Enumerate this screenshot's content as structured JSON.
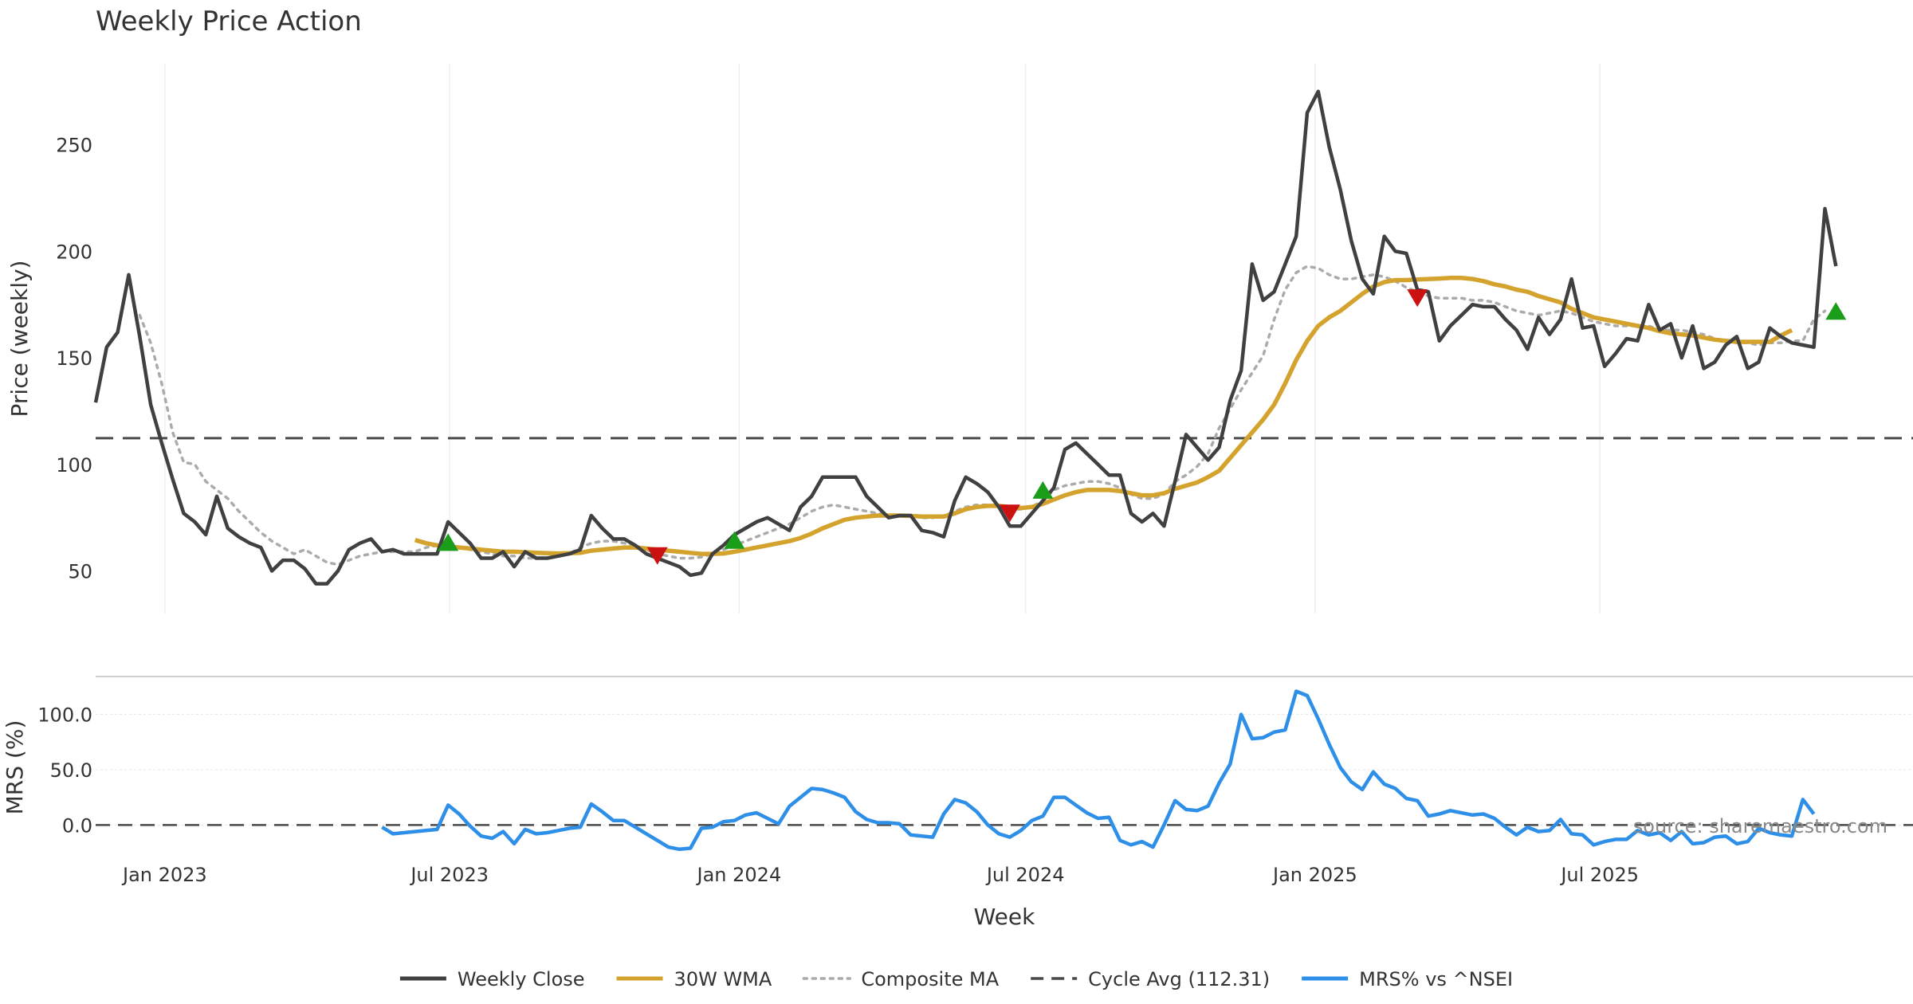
{
  "chart_data": {
    "type": "line",
    "title": "Weekly Price Action",
    "xlabel": "Week",
    "source": "source: sharemaestro.com",
    "dates": [
      "2022-11-18",
      "2022-11-25",
      "2022-12-02",
      "2022-12-09",
      "2022-12-16",
      "2022-12-23",
      "2022-12-30",
      "2023-01-06",
      "2023-01-13",
      "2023-01-20",
      "2023-01-27",
      "2023-02-03",
      "2023-02-10",
      "2023-02-17",
      "2023-02-24",
      "2023-03-03",
      "2023-03-10",
      "2023-03-17",
      "2023-03-24",
      "2023-03-31",
      "2023-04-07",
      "2023-04-14",
      "2023-04-21",
      "2023-04-28",
      "2023-05-05",
      "2023-05-12",
      "2023-05-19",
      "2023-05-26",
      "2023-06-02",
      "2023-06-09",
      "2023-06-16",
      "2023-06-23",
      "2023-06-30",
      "2023-07-07",
      "2023-07-14",
      "2023-07-21",
      "2023-07-28",
      "2023-08-04",
      "2023-08-11",
      "2023-08-18",
      "2023-08-25",
      "2023-09-01",
      "2023-09-08",
      "2023-09-15",
      "2023-09-22",
      "2023-09-29",
      "2023-10-06",
      "2023-10-13",
      "2023-10-20",
      "2023-10-27",
      "2023-11-03",
      "2023-11-10",
      "2023-11-17",
      "2023-11-24",
      "2023-12-01",
      "2023-12-08",
      "2023-12-15",
      "2023-12-22",
      "2023-12-29",
      "2024-01-05",
      "2024-01-12",
      "2024-01-19",
      "2024-01-26",
      "2024-02-02",
      "2024-02-09",
      "2024-02-16",
      "2024-02-23",
      "2024-03-01",
      "2024-03-08",
      "2024-03-15",
      "2024-03-22",
      "2024-03-29",
      "2024-04-05",
      "2024-04-12",
      "2024-04-19",
      "2024-04-26",
      "2024-05-03",
      "2024-05-10",
      "2024-05-17",
      "2024-05-24",
      "2024-05-31",
      "2024-06-07",
      "2024-06-14",
      "2024-06-21",
      "2024-06-28",
      "2024-07-05",
      "2024-07-12",
      "2024-07-19",
      "2024-07-26",
      "2024-08-02",
      "2024-08-09",
      "2024-08-16",
      "2024-08-23",
      "2024-08-30",
      "2024-09-06",
      "2024-09-13",
      "2024-09-20",
      "2024-09-27",
      "2024-10-04",
      "2024-10-11",
      "2024-10-18",
      "2024-10-25",
      "2024-11-01",
      "2024-11-08",
      "2024-11-15",
      "2024-11-22",
      "2024-11-29",
      "2024-12-06",
      "2024-12-13",
      "2024-12-20",
      "2024-12-27",
      "2025-01-03",
      "2025-01-10",
      "2025-01-17",
      "2025-01-24",
      "2025-01-31",
      "2025-02-07",
      "2025-02-14",
      "2025-02-21",
      "2025-02-28",
      "2025-03-07",
      "2025-03-14",
      "2025-03-21",
      "2025-03-28",
      "2025-04-04",
      "2025-04-11",
      "2025-04-18",
      "2025-04-25",
      "2025-05-02",
      "2025-05-09",
      "2025-05-16",
      "2025-05-23",
      "2025-05-30",
      "2025-06-06",
      "2025-06-13",
      "2025-06-20",
      "2025-06-27",
      "2025-07-04",
      "2025-07-11",
      "2025-07-18",
      "2025-07-25",
      "2025-08-01",
      "2025-08-08",
      "2025-08-15",
      "2025-08-22",
      "2025-08-29",
      "2025-09-05",
      "2025-09-12",
      "2025-09-19",
      "2025-09-26",
      "2025-10-03",
      "2025-10-10",
      "2025-10-17",
      "2025-10-24",
      "2025-10-31",
      "2025-11-07",
      "2025-11-14",
      "2025-11-21",
      "2025-11-28"
    ],
    "price_panel": {
      "ylabel": "Price (weekly)",
      "yticks": [
        50,
        100,
        150,
        200,
        250
      ],
      "ylim": [
        30,
        288
      ],
      "series": [
        {
          "name": "Weekly Close",
          "color": "#404040",
          "style": "solid",
          "values": [
            129,
            155,
            162,
            189,
            160,
            128,
            110,
            93,
            77,
            73,
            67,
            85,
            70,
            66,
            63,
            61,
            50,
            55,
            55,
            51,
            44,
            44,
            50,
            60,
            63,
            65,
            59,
            60,
            58,
            58,
            58,
            58,
            73,
            68,
            63,
            56,
            56,
            59,
            52,
            59,
            56,
            56,
            57,
            58,
            60,
            76,
            70,
            65,
            65,
            62,
            58,
            56,
            54,
            52,
            48,
            49,
            58,
            62,
            67,
            70,
            73,
            75,
            72,
            69,
            80,
            85,
            94,
            94,
            94,
            94,
            85,
            80,
            75,
            76,
            76,
            69,
            68,
            66,
            83,
            94,
            91,
            87,
            80,
            71,
            71,
            77,
            83,
            89,
            107,
            110,
            105,
            100,
            95,
            95,
            77,
            73,
            77,
            71,
            92,
            114,
            108,
            102,
            108,
            130,
            144,
            194,
            177,
            181,
            194,
            207,
            265,
            275,
            249,
            229,
            205,
            187,
            180,
            207,
            200,
            199,
            182,
            181,
            158,
            165,
            170,
            175,
            174,
            174,
            168,
            163,
            154,
            169,
            161,
            168,
            187,
            164,
            165,
            146,
            152,
            159,
            158,
            175,
            163,
            166,
            150,
            165,
            145,
            148,
            156,
            160,
            145,
            148,
            164,
            160,
            157,
            156,
            155,
            220,
            193
          ]
        },
        {
          "name": "30W WMA",
          "color": "#D4A32E",
          "style": "solid",
          "values": [
            null,
            null,
            null,
            null,
            null,
            null,
            null,
            null,
            null,
            null,
            null,
            null,
            null,
            null,
            null,
            null,
            null,
            null,
            null,
            null,
            null,
            null,
            null,
            null,
            null,
            null,
            null,
            null,
            null,
            64.5,
            63,
            62,
            61.5,
            61,
            60.5,
            60,
            59.5,
            59,
            59,
            58.8,
            58.5,
            58.3,
            58.2,
            58.3,
            58.5,
            59.5,
            60,
            60.5,
            61,
            61,
            60.5,
            60,
            59.5,
            59,
            58.5,
            58,
            58,
            58.2,
            59,
            60,
            61,
            62,
            63,
            64,
            65.5,
            67.5,
            70,
            72,
            74,
            75,
            75.5,
            76,
            76,
            76,
            75.8,
            75.5,
            75.5,
            75.5,
            77,
            79,
            80,
            80.5,
            80.5,
            80,
            79.5,
            80,
            81.5,
            83.5,
            85.5,
            87,
            88,
            88,
            88,
            87.5,
            86.5,
            85.5,
            85.5,
            86.5,
            88.5,
            90,
            91.5,
            94,
            97,
            103,
            109,
            115,
            121,
            128,
            138,
            149,
            158,
            165,
            169,
            172,
            176,
            180,
            183.5,
            185.5,
            186.5,
            186.5,
            186.8,
            187,
            187.2,
            187.5,
            187.5,
            187,
            186,
            184.5,
            183.5,
            182,
            181,
            179,
            177.5,
            176,
            173,
            171,
            169,
            168,
            167,
            166,
            165,
            164,
            162.5,
            161.5,
            161,
            160.5,
            159.5,
            158.5,
            158,
            157.5,
            157.5,
            157.5,
            157.5,
            160.5,
            163
          ]
        },
        {
          "name": "Composite MA",
          "color": "#ABABAB",
          "style": "dotted",
          "values": [
            null,
            null,
            null,
            null,
            170,
            157,
            138,
            115,
            101,
            100,
            92,
            88,
            84,
            78,
            73,
            68,
            64,
            61,
            58,
            60,
            57,
            54,
            53,
            55,
            57,
            58,
            59,
            59,
            59,
            59,
            61,
            62,
            62,
            61,
            60,
            59,
            58,
            57,
            57,
            56,
            56,
            56,
            57,
            58,
            61,
            63,
            64,
            64,
            63,
            62,
            60,
            58,
            57,
            56,
            56,
            56.5,
            58,
            60,
            62,
            64,
            66,
            68,
            70,
            72,
            75,
            78,
            80,
            81,
            80,
            79,
            78,
            77,
            76,
            76,
            76,
            75,
            75,
            76,
            78,
            80,
            81,
            81,
            80,
            79,
            79,
            80,
            83,
            88,
            90,
            91,
            92,
            92,
            91,
            89,
            86,
            84,
            84,
            86,
            92,
            95,
            99,
            105,
            117,
            126,
            135,
            143,
            151,
            168,
            182,
            190,
            193,
            192,
            189,
            187,
            187,
            188,
            189,
            188,
            186,
            183,
            181,
            179,
            178,
            178,
            178,
            177,
            177,
            176,
            174,
            172,
            171,
            170,
            171,
            172,
            171,
            169,
            167,
            166,
            165,
            165,
            165,
            165,
            163,
            163,
            163,
            162,
            161,
            159,
            158,
            157,
            157,
            156,
            157,
            157,
            158,
            158,
            168,
            172
          ]
        }
      ],
      "reference_line": {
        "name": "Cycle Avg (112.31)",
        "value": 112.31,
        "color": "#4a4a4a",
        "style": "dashed"
      },
      "buy_signals": [
        {
          "date": "2023-06-30",
          "value": 63.5
        },
        {
          "date": "2023-12-29",
          "value": 64.5
        },
        {
          "date": "2024-07-12",
          "value": 88
        },
        {
          "date": "2025-11-28",
          "value": 172
        }
      ],
      "sell_signals": [
        {
          "date": "2023-11-10",
          "value": 57
        },
        {
          "date": "2024-06-21",
          "value": 77
        },
        {
          "date": "2025-03-07",
          "value": 178
        }
      ],
      "buy_color": "#1a9e1a",
      "sell_color": "#cc1111"
    },
    "mrs_panel": {
      "ylabel": "MRS (%)",
      "yticks": [
        0.0,
        50.0,
        100.0
      ],
      "ytick_labels": [
        "0.0",
        "50.0",
        "100.0"
      ],
      "ylim": [
        -25,
        130
      ],
      "series": [
        {
          "name": "MRS% vs ^NSEI",
          "color": "#2E8FE8",
          "style": "solid",
          "values": [
            null,
            null,
            null,
            null,
            null,
            null,
            null,
            null,
            null,
            null,
            null,
            null,
            null,
            null,
            null,
            null,
            null,
            null,
            null,
            null,
            null,
            null,
            null,
            null,
            null,
            null,
            -2,
            -8,
            -7,
            -6,
            -5,
            -4,
            18,
            10,
            -1,
            -10,
            -12,
            -6,
            -17,
            -4,
            -8,
            -7,
            -5,
            -3,
            -2,
            19,
            12,
            4,
            4,
            -2,
            -8,
            -14,
            -20,
            -22,
            -21,
            -3,
            -2,
            3,
            4,
            9,
            11,
            6,
            1,
            17,
            25,
            33,
            32,
            29,
            25,
            12,
            5,
            2,
            2,
            1,
            -9,
            -10,
            -11,
            10,
            23,
            20,
            12,
            0,
            -8,
            -11,
            -5,
            4,
            8,
            25,
            25,
            18,
            11,
            6,
            7,
            -14,
            -18,
            -15,
            -20,
            0,
            22,
            14,
            13,
            17,
            38,
            55,
            100,
            78,
            79,
            84,
            86,
            121,
            117,
            96,
            73,
            52,
            39,
            32,
            48,
            37,
            33,
            24,
            22,
            8,
            10,
            13,
            11,
            9,
            10,
            6,
            -2,
            -9,
            -2,
            -6,
            -5,
            5,
            -8,
            -9,
            -18,
            -15,
            -13,
            -13,
            -5,
            -9,
            -7,
            -14,
            -6,
            -17,
            -16,
            -11,
            -10,
            -17,
            -15,
            -3,
            -7,
            -9,
            -10,
            23,
            10
          ]
        }
      ],
      "reference_line": {
        "value": 0,
        "color": "#4a4a4a",
        "style": "dashed"
      }
    },
    "x_ticks": [
      {
        "date": "2023-01-01",
        "label": "Jan 2023"
      },
      {
        "date": "2023-07-01",
        "label": "Jul 2023"
      },
      {
        "date": "2024-01-01",
        "label": "Jan 2024"
      },
      {
        "date": "2024-07-01",
        "label": "Jul 2024"
      },
      {
        "date": "2025-01-01",
        "label": "Jan 2025"
      },
      {
        "date": "2025-07-01",
        "label": "Jul 2025"
      }
    ],
    "xlim": [
      "2022-11-18",
      "2026-01-16"
    ],
    "legend": {
      "placement": "bottom-center",
      "entries": [
        {
          "label": "Weekly Close",
          "color": "#404040",
          "style": "solid"
        },
        {
          "label": "30W WMA",
          "color": "#D4A32E",
          "style": "solid"
        },
        {
          "label": "Composite MA",
          "color": "#ABABAB",
          "style": "dotted"
        },
        {
          "label": "Cycle Avg (112.31)",
          "color": "#4a4a4a",
          "style": "dashed"
        },
        {
          "label": "MRS% vs ^NSEI",
          "color": "#2E8FE8",
          "style": "solid"
        }
      ]
    }
  }
}
